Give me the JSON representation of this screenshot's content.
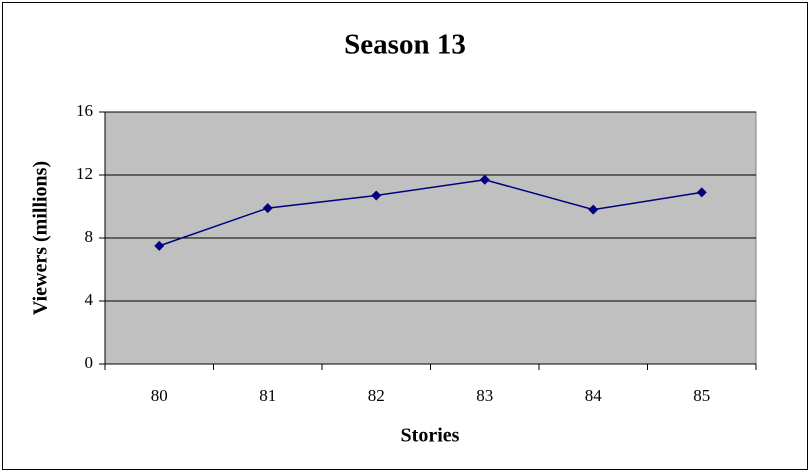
{
  "chart_data": {
    "type": "line",
    "title": "Season 13",
    "x_label": "Stories",
    "y_label": "Viewers (millions)",
    "categories": [
      "80",
      "81",
      "82",
      "83",
      "84",
      "85"
    ],
    "values": [
      7.5,
      9.9,
      10.7,
      11.7,
      9.8,
      10.9
    ],
    "color": "#000080",
    "plot_background": "#c0c0c0",
    "ylim": [
      0,
      16
    ],
    "yticks": [
      0,
      4,
      8,
      12,
      16
    ],
    "grid": true
  }
}
